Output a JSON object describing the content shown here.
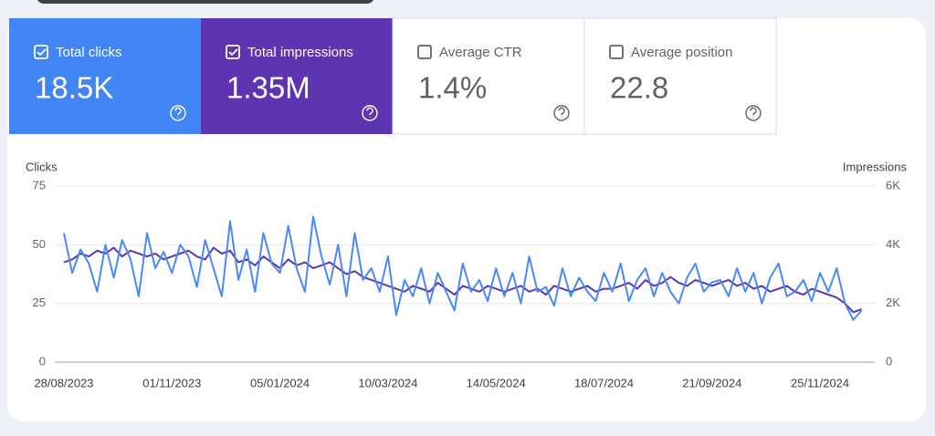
{
  "metrics": [
    {
      "label": "Total clicks",
      "value": "18.5K",
      "selected": true,
      "color": "#4285f4"
    },
    {
      "label": "Total impressions",
      "value": "1.35M",
      "selected": true,
      "color": "#5e35b1"
    },
    {
      "label": "Average CTR",
      "value": "1.4%",
      "selected": false,
      "color": "#ffffff"
    },
    {
      "label": "Average position",
      "value": "22.8",
      "selected": false,
      "color": "#ffffff"
    }
  ],
  "chart_data": {
    "type": "line",
    "categories": [
      "28/08/2023",
      null,
      null,
      null,
      null,
      null,
      null,
      null,
      null,
      null,
      null,
      null,
      null,
      "01/11/2023",
      null,
      null,
      null,
      null,
      null,
      null,
      null,
      null,
      null,
      null,
      null,
      null,
      "05/01/2024",
      null,
      null,
      null,
      null,
      null,
      null,
      null,
      null,
      null,
      null,
      null,
      null,
      "10/03/2024",
      null,
      null,
      null,
      null,
      null,
      null,
      null,
      null,
      null,
      null,
      null,
      null,
      "14/05/2024",
      null,
      null,
      null,
      null,
      null,
      null,
      null,
      null,
      null,
      null,
      null,
      null,
      "18/07/2024",
      null,
      null,
      null,
      null,
      null,
      null,
      null,
      null,
      null,
      null,
      null,
      null,
      "21/09/2024",
      null,
      null,
      null,
      null,
      null,
      null,
      null,
      null,
      null,
      null,
      null,
      null,
      "25/11/2024",
      null,
      null,
      null,
      null,
      null
    ],
    "series": [
      {
        "name": "Clicks",
        "color": "#4a8af4",
        "values": [
          55,
          38,
          48,
          42,
          30,
          50,
          36,
          52,
          44,
          28,
          55,
          40,
          47,
          38,
          50,
          45,
          32,
          52,
          40,
          28,
          60,
          35,
          48,
          30,
          55,
          42,
          38,
          58,
          40,
          30,
          62,
          45,
          33,
          50,
          28,
          55,
          35,
          40,
          30,
          45,
          20,
          35,
          28,
          40,
          25,
          38,
          30,
          22,
          42,
          30,
          35,
          26,
          40,
          28,
          38,
          25,
          45,
          30,
          32,
          24,
          40,
          28,
          36,
          30,
          26,
          38,
          30,
          42,
          26,
          35,
          40,
          28,
          38,
          30,
          25,
          36,
          42,
          30,
          34,
          35,
          28,
          40,
          30,
          38,
          25,
          36,
          42,
          28,
          30,
          35,
          26,
          38,
          30,
          40,
          25,
          18,
          22
        ]
      },
      {
        "name": "Impressions",
        "color": "#5e35b1",
        "axis": "y2",
        "values": [
          3400,
          3500,
          3700,
          3600,
          3800,
          3700,
          3900,
          3600,
          3800,
          3700,
          3600,
          3700,
          3500,
          3600,
          3700,
          3800,
          3600,
          3500,
          3900,
          3700,
          3800,
          3400,
          3500,
          3300,
          3600,
          3400,
          3200,
          3500,
          3300,
          3400,
          3200,
          3300,
          3400,
          3200,
          3000,
          3100,
          2900,
          2800,
          2700,
          2600,
          2500,
          2400,
          2600,
          2500,
          2400,
          2700,
          2500,
          2300,
          2600,
          2500,
          2400,
          2600,
          2500,
          2400,
          2500,
          2600,
          2400,
          2500,
          2300,
          2600,
          2500,
          2400,
          2500,
          2600,
          2400,
          2500,
          2500,
          2600,
          2700,
          2500,
          2800,
          2600,
          2700,
          2900,
          2700,
          2600,
          2800,
          2700,
          2600,
          2700,
          2800,
          2600,
          2700,
          2500,
          2600,
          2400,
          2500,
          2600,
          2400,
          2300,
          2500,
          2400,
          2300,
          2200,
          2000,
          1700,
          1800
        ]
      }
    ],
    "ylim": [
      0,
      75
    ],
    "yticks": [
      0,
      25,
      50,
      75
    ],
    "y2lim": [
      0,
      6000
    ],
    "y2ticks": [
      0,
      {
        "value": 2000,
        "label": "2K"
      },
      {
        "value": 4000,
        "label": "4K"
      },
      {
        "value": 6000,
        "label": "6K"
      }
    ],
    "grid": true
  }
}
